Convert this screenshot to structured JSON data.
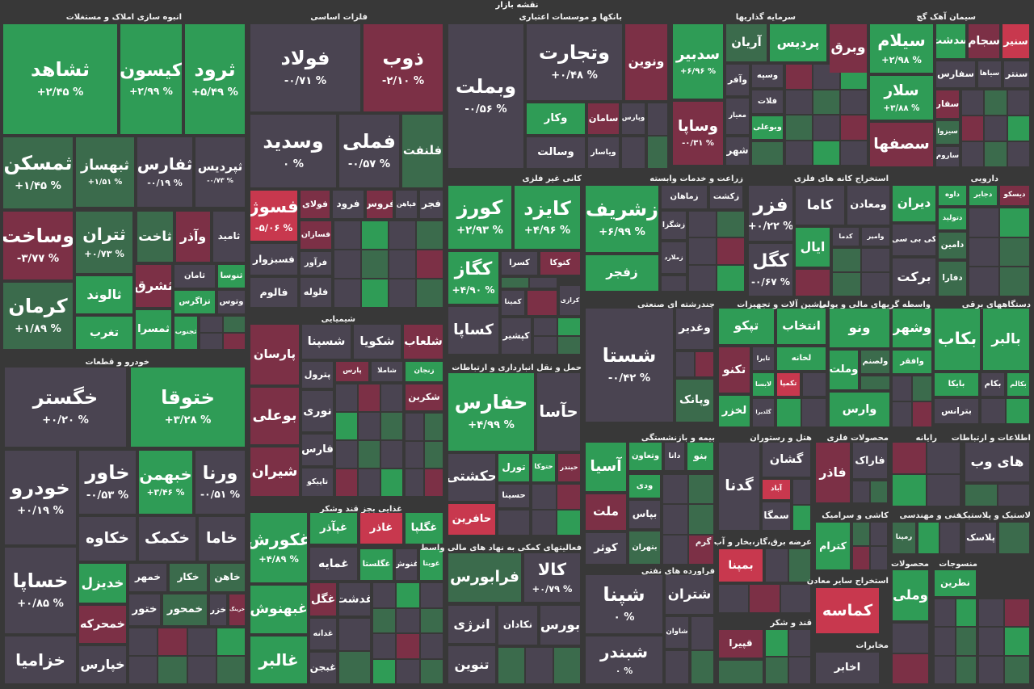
{
  "title": "نقشه بازار",
  "sectors": [
    {
      "name": "انبوه سازی املاک و مستغلات",
      "tiles": [
        {
          "name": "ثشاهد",
          "change": "+۲/۴۵ %"
        },
        {
          "name": "کیسون",
          "change": "+۲/۹۹ %"
        },
        {
          "name": "ثرود",
          "change": "+۵/۴۹ %"
        },
        {
          "name": "ثمسکن",
          "change": "+۱/۴۵ %"
        },
        {
          "name": "ثبهساز",
          "change": "+۱/۵۱ %"
        },
        {
          "name": "ثفارس",
          "change": "-۰/۱۹ %"
        },
        {
          "name": "ثپردیس",
          "change": "-۰/۷۳ %"
        },
        {
          "name": "وساخت",
          "change": "-۳/۷۷ %"
        },
        {
          "name": "ثتران",
          "change": "+۰/۷۳ %"
        },
        {
          "name": "ثاخت"
        },
        {
          "name": "وآذر"
        },
        {
          "name": "ثامید"
        },
        {
          "name": "کرمان",
          "change": "+۱/۸۹ %"
        },
        {
          "name": "ثالوند"
        },
        {
          "name": "ثشرق"
        },
        {
          "name": "ثامان"
        },
        {
          "name": "ثنوسا"
        },
        {
          "name": "تغرب"
        },
        {
          "name": "ثمسرا"
        },
        {
          "name": "تزاگرس"
        },
        {
          "name": "وتوس"
        },
        {
          "name": "ثجنوب"
        }
      ]
    },
    {
      "name": "فلزات اساسی",
      "tiles": [
        {
          "name": "فولاد",
          "change": "-۰/۷۱ %"
        },
        {
          "name": "ذوب",
          "change": "-۲/۱۰ %"
        },
        {
          "name": "وسدید",
          "change": "۰ %"
        },
        {
          "name": "فملی",
          "change": "-۰/۵۷ %"
        },
        {
          "name": "فلنفت"
        },
        {
          "name": "فسوژ",
          "change": "-۵/۰۶ %"
        },
        {
          "name": "فولای"
        },
        {
          "name": "فرود"
        },
        {
          "name": "فروس"
        },
        {
          "name": "فپاهن"
        },
        {
          "name": "فجر"
        },
        {
          "name": "فسازان"
        },
        {
          "name": "فسبزوار"
        },
        {
          "name": "فرآور"
        },
        {
          "name": "فالوم"
        },
        {
          "name": "فلوله"
        }
      ]
    },
    {
      "name": "بانکها و موسسات اعتباری",
      "tiles": [
        {
          "name": "وبملت",
          "change": "-۰/۵۶ %"
        },
        {
          "name": "وتجارت",
          "change": "+۰/۴۸ %"
        },
        {
          "name": "ونوین"
        },
        {
          "name": "وکار"
        },
        {
          "name": "سامان"
        },
        {
          "name": "وپارس"
        },
        {
          "name": "وسالت"
        },
        {
          "name": "ویاسار"
        }
      ]
    },
    {
      "name": "سرمایه گذاریها",
      "tiles": [
        {
          "name": "سدبیر",
          "change": "+۶/۹۶ %"
        },
        {
          "name": "وساپا",
          "change": "-۰/۳۱ %"
        },
        {
          "name": "آریان"
        },
        {
          "name": "پردیس"
        },
        {
          "name": "وبرق"
        },
        {
          "name": "وآفر"
        },
        {
          "name": "وسپه"
        },
        {
          "name": "فلات"
        },
        {
          "name": "معیار"
        },
        {
          "name": "وبوعلی"
        },
        {
          "name": "شهر"
        }
      ]
    },
    {
      "name": "سیمان آهک گچ",
      "tiles": [
        {
          "name": "سیلام",
          "change": "+۲/۹۸ %"
        },
        {
          "name": "سدشت"
        },
        {
          "name": "سجام"
        },
        {
          "name": "سنیر"
        },
        {
          "name": "سفارس"
        },
        {
          "name": "سیاها"
        },
        {
          "name": "سنتر"
        },
        {
          "name": "سلار",
          "change": "+۳/۸۸ %"
        },
        {
          "name": "سفار"
        },
        {
          "name": "سیزوا"
        },
        {
          "name": "سصفها"
        },
        {
          "name": "ساروم"
        }
      ]
    },
    {
      "name": "کانی غیر فلزی",
      "tiles": [
        {
          "name": "کورز",
          "change": "+۲/۹۳ %"
        },
        {
          "name": "کایزد",
          "change": "+۴/۹۶ %"
        },
        {
          "name": "کگاز",
          "change": "+۴/۹۰ %"
        },
        {
          "name": "کسرا"
        },
        {
          "name": "کتوکا"
        },
        {
          "name": "کمینا"
        },
        {
          "name": "کرازی"
        },
        {
          "name": "کساپا"
        },
        {
          "name": "کپشیر"
        }
      ]
    },
    {
      "name": "زراعت و خدمات وابسته",
      "tiles": [
        {
          "name": "زشریف",
          "change": "+۶/۹۹ %"
        },
        {
          "name": "زماهان"
        },
        {
          "name": "زکشت"
        },
        {
          "name": "زشگزا"
        },
        {
          "name": "زملارد"
        },
        {
          "name": "زفجر"
        }
      ]
    },
    {
      "name": "استخراج کانه های فلزی",
      "tiles": [
        {
          "name": "فزر",
          "change": "+۰/۲۲ %"
        },
        {
          "name": "کاما"
        },
        {
          "name": "ومعادن"
        },
        {
          "name": "کگل",
          "change": "-۰/۶۷ %"
        },
        {
          "name": "ایال"
        },
        {
          "name": "کدما"
        },
        {
          "name": "وامیر"
        }
      ]
    },
    {
      "name": "دارویی",
      "tiles": [
        {
          "name": "دیران"
        },
        {
          "name": "داوه"
        },
        {
          "name": "دجابر"
        },
        {
          "name": "دیسکو"
        },
        {
          "name": "دتولید"
        },
        {
          "name": "دامین"
        },
        {
          "name": "دفارا"
        },
        {
          "name": "کی بی سی"
        },
        {
          "name": "برکت"
        }
      ]
    },
    {
      "name": "خودرو و قطعات",
      "tiles": [
        {
          "name": "خگستر",
          "change": "+۰/۲۰ %"
        },
        {
          "name": "ختوقا",
          "change": "+۳/۲۸ %"
        },
        {
          "name": "خودرو",
          "change": "+۰/۱۹ %"
        },
        {
          "name": "خاور",
          "change": "-۰/۵۳ %"
        },
        {
          "name": "خبهمن",
          "change": "+۳/۴۶ %"
        },
        {
          "name": "ورنا",
          "change": "-۰/۵۱ %"
        },
        {
          "name": "خکاوه"
        },
        {
          "name": "خکمک"
        },
        {
          "name": "خاما"
        },
        {
          "name": "خساپا",
          "change": "+۰/۸۵ %"
        },
        {
          "name": "خدیزل"
        },
        {
          "name": "خمهر"
        },
        {
          "name": "خکار"
        },
        {
          "name": "خاهن"
        },
        {
          "name": "خمحرکه"
        },
        {
          "name": "ختور"
        },
        {
          "name": "خمحور"
        },
        {
          "name": "خزر"
        },
        {
          "name": "خرینگ"
        },
        {
          "name": "خزامیا"
        },
        {
          "name": "خپارس"
        }
      ]
    },
    {
      "name": "شیمیایی",
      "tiles": [
        {
          "name": "پارسان"
        },
        {
          "name": "شسپنا"
        },
        {
          "name": "شکویا"
        },
        {
          "name": "شلعاب"
        },
        {
          "name": "پترول"
        },
        {
          "name": "پارس"
        },
        {
          "name": "شاملا"
        },
        {
          "name": "زنجان"
        },
        {
          "name": "بوعلی"
        },
        {
          "name": "نوری"
        },
        {
          "name": "شکربن"
        },
        {
          "name": "شیران"
        },
        {
          "name": "فارس"
        },
        {
          "name": "تاپیکو"
        }
      ]
    },
    {
      "name": "غذایی بجز قند وشکر",
      "tiles": [
        {
          "name": "غکورش",
          "change": "+۴/۸۹ %"
        },
        {
          "name": "غپآذر"
        },
        {
          "name": "غاذر"
        },
        {
          "name": "غگلپا"
        },
        {
          "name": "غمایه"
        },
        {
          "name": "غگلستا"
        },
        {
          "name": "غنوش"
        },
        {
          "name": "غویتا"
        },
        {
          "name": "غبهنوش"
        },
        {
          "name": "غگل"
        },
        {
          "name": "غدشت"
        },
        {
          "name": "غدانه"
        },
        {
          "name": "غالبر"
        },
        {
          "name": "غبجن"
        }
      ]
    },
    {
      "name": "حمل و نقل انبارداری و ارتباطات",
      "tiles": [
        {
          "name": "حفارس",
          "change": "+۴/۹۹ %"
        },
        {
          "name": "حآسا"
        },
        {
          "name": "حکشتی"
        },
        {
          "name": "تورل"
        },
        {
          "name": "حتوکا"
        },
        {
          "name": "حبندر"
        },
        {
          "name": "حسینا"
        },
        {
          "name": "حافرین"
        }
      ]
    },
    {
      "name": "فعالیتهای کمکی به نهاد های مالی واسط",
      "tiles": [
        {
          "name": "فرابورس"
        },
        {
          "name": "کالا",
          "change": "+۰/۷۹ %"
        },
        {
          "name": "انرژی"
        },
        {
          "name": "نکادان"
        },
        {
          "name": "بورس"
        },
        {
          "name": "تنوین"
        }
      ]
    },
    {
      "name": "چندرشته ای صنعتی",
      "tiles": [
        {
          "name": "شستا",
          "change": "-۰/۴۲ %"
        },
        {
          "name": "وغدیر"
        },
        {
          "name": "وپانک"
        }
      ]
    },
    {
      "name": "ماشین آلات و تجهیزات",
      "tiles": [
        {
          "name": "تپکو"
        },
        {
          "name": "انتخاب"
        },
        {
          "name": "تکنو"
        },
        {
          "name": "تایرا"
        },
        {
          "name": "لخانه"
        },
        {
          "name": "لابسا"
        },
        {
          "name": "تکمپا"
        },
        {
          "name": "لخزر"
        },
        {
          "name": "گلدیرا"
        }
      ]
    },
    {
      "name": "واسطه گریهای مالی و پولی",
      "tiles": [
        {
          "name": "ونو"
        },
        {
          "name": "ولصنم"
        },
        {
          "name": "وملت"
        },
        {
          "name": "وارس"
        },
        {
          "name": "وشهر"
        },
        {
          "name": "وافقر"
        }
      ]
    },
    {
      "name": "دستگاههای برقی",
      "tiles": [
        {
          "name": "بکاب"
        },
        {
          "name": "بالبر"
        },
        {
          "name": "بایکا"
        },
        {
          "name": "بکام"
        },
        {
          "name": "بکالم"
        },
        {
          "name": "بترانس"
        }
      ]
    },
    {
      "name": "بیمه و بازنشستگی",
      "tiles": [
        {
          "name": "آسیا"
        },
        {
          "name": "وتعاون"
        },
        {
          "name": "دانا"
        },
        {
          "name": "بنو"
        },
        {
          "name": "ودی"
        },
        {
          "name": "ملت"
        },
        {
          "name": "بپاس"
        },
        {
          "name": "کوثر"
        },
        {
          "name": "بتهران"
        }
      ]
    },
    {
      "name": "هتل و رستوران",
      "tiles": [
        {
          "name": "گدنا"
        },
        {
          "name": "گشان"
        },
        {
          "name": "آباد"
        },
        {
          "name": "سمگا"
        }
      ]
    },
    {
      "name": "محصولات فلزی",
      "tiles": [
        {
          "name": "فاذر"
        },
        {
          "name": "فاراک"
        }
      ]
    },
    {
      "name": "فراورده های نفتی",
      "tiles": [
        {
          "name": "شپنا",
          "change": "۰ %"
        },
        {
          "name": "شتران"
        },
        {
          "name": "شبندر",
          "change": "۰ %"
        },
        {
          "name": "شاوان"
        }
      ]
    },
    {
      "name": "رایانه",
      "tiles": []
    },
    {
      "name": "اطلاعات و ارتباطات",
      "tiles": [
        {
          "name": "های وب"
        }
      ]
    },
    {
      "name": "کاشی و سرامیک",
      "tiles": [
        {
          "name": "کترام"
        }
      ]
    },
    {
      "name": "فنی و مهندسی",
      "tiles": [
        {
          "name": "رمپنا"
        }
      ]
    },
    {
      "name": "لاستیک و پلاستیک",
      "tiles": [
        {
          "name": "پلاسک"
        }
      ]
    },
    {
      "name": "عرضه برق،گاز،بخار و آب گرم",
      "tiles": [
        {
          "name": "بمپنا"
        }
      ]
    },
    {
      "name": "قند و شکر",
      "tiles": [
        {
          "name": "قپیرا"
        }
      ]
    },
    {
      "name": "استخراج سایر معادن",
      "tiles": [
        {
          "name": "کماسه"
        }
      ]
    },
    {
      "name": "مخابرات",
      "tiles": [
        {
          "name": "اخابر"
        }
      ]
    },
    {
      "name": "محصولات",
      "tiles": [
        {
          "name": "وملی"
        }
      ]
    },
    {
      "name": "منسوجات",
      "tiles": [
        {
          "name": "نطرین"
        }
      ]
    }
  ]
}
